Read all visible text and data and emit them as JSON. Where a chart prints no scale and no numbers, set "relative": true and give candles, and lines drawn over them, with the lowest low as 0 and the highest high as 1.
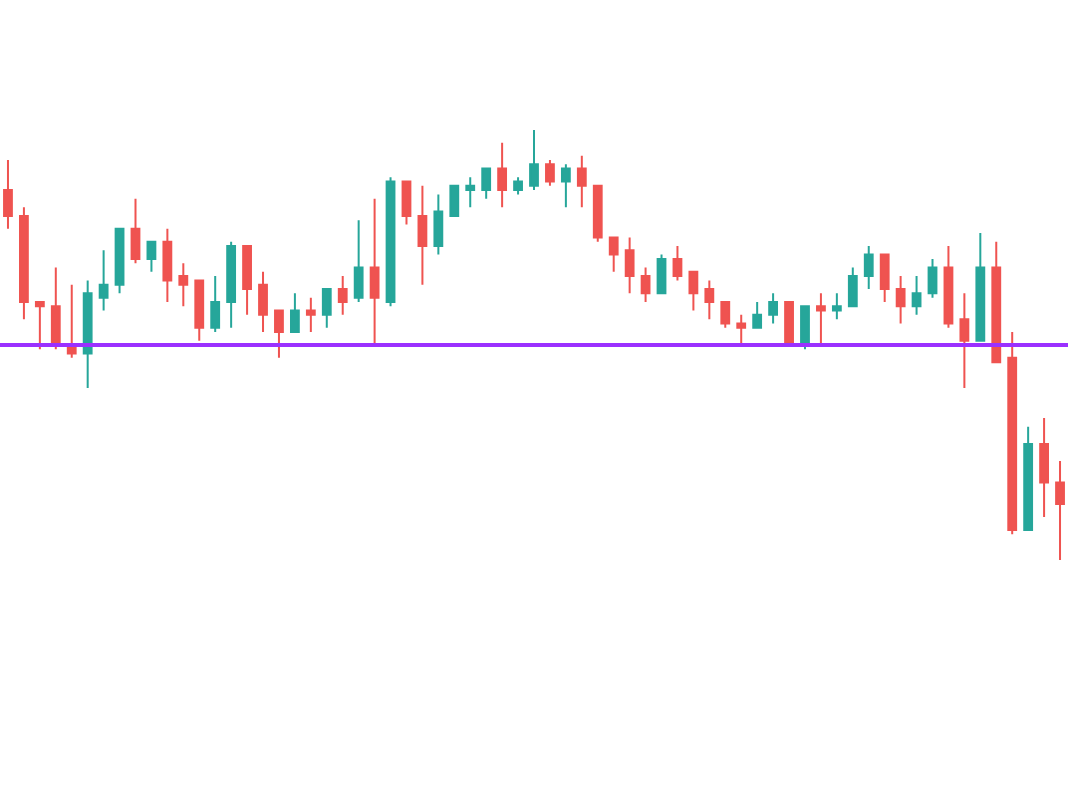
{
  "chart_data": {
    "type": "candlestick",
    "relative": true,
    "categories": [
      null,
      null,
      null,
      null,
      null,
      null,
      null,
      null,
      null,
      null,
      null,
      null,
      null,
      null,
      null,
      null,
      null,
      null,
      null,
      null,
      null,
      null,
      null,
      null,
      null,
      null,
      null,
      null,
      null,
      null,
      null,
      null,
      null,
      null,
      null,
      null,
      null,
      null,
      null,
      null,
      null,
      null,
      null,
      null,
      null,
      null,
      null,
      null,
      null,
      null,
      null,
      null,
      null,
      null,
      null,
      null,
      null,
      null,
      null,
      null,
      null,
      null,
      null,
      null,
      null,
      null,
      null
    ],
    "ohlc": [
      [
        0.86,
        0.93,
        0.77,
        0.8
      ],
      [
        0.8,
        0.82,
        0.56,
        0.6
      ],
      [
        0.6,
        0.6,
        0.49,
        0.59
      ],
      [
        0.59,
        0.68,
        0.49,
        0.5
      ],
      [
        0.5,
        0.64,
        0.47,
        0.48
      ],
      [
        0.48,
        0.65,
        0.4,
        0.62
      ],
      [
        0.61,
        0.72,
        0.58,
        0.64
      ],
      [
        0.64,
        0.77,
        0.62,
        0.77
      ],
      [
        0.77,
        0.84,
        0.69,
        0.7
      ],
      [
        0.7,
        0.74,
        0.67,
        0.74
      ],
      [
        0.74,
        0.77,
        0.6,
        0.65
      ],
      [
        0.66,
        0.69,
        0.59,
        0.64
      ],
      [
        0.65,
        0.65,
        0.51,
        0.54
      ],
      [
        0.54,
        0.66,
        0.53,
        0.6
      ],
      [
        0.6,
        0.74,
        0.54,
        0.73
      ],
      [
        0.73,
        0.73,
        0.57,
        0.63
      ],
      [
        0.64,
        0.67,
        0.53,
        0.57
      ],
      [
        0.58,
        0.58,
        0.47,
        0.53
      ],
      [
        0.53,
        0.62,
        0.53,
        0.58
      ],
      [
        0.58,
        0.61,
        0.53,
        0.57
      ],
      [
        0.57,
        0.63,
        0.54,
        0.63
      ],
      [
        0.63,
        0.66,
        0.57,
        0.6
      ],
      [
        0.61,
        0.79,
        0.6,
        0.68
      ],
      [
        0.68,
        0.84,
        0.5,
        0.61
      ],
      [
        0.6,
        0.89,
        0.59,
        0.88
      ],
      [
        0.88,
        0.88,
        0.78,
        0.8
      ],
      [
        0.8,
        0.87,
        0.64,
        0.73
      ],
      [
        0.73,
        0.85,
        0.71,
        0.81
      ],
      [
        0.8,
        0.87,
        0.8,
        0.87
      ],
      [
        0.86,
        0.89,
        0.82,
        0.87
      ],
      [
        0.86,
        0.91,
        0.84,
        0.91
      ],
      [
        0.91,
        0.97,
        0.82,
        0.86
      ],
      [
        0.86,
        0.89,
        0.85,
        0.88
      ],
      [
        0.87,
        1.0,
        0.86,
        0.92
      ],
      [
        0.92,
        0.93,
        0.87,
        0.88
      ],
      [
        0.88,
        0.92,
        0.82,
        0.91
      ],
      [
        0.91,
        0.94,
        0.82,
        0.87
      ],
      [
        0.87,
        0.87,
        0.74,
        0.75
      ],
      [
        0.75,
        0.75,
        0.67,
        0.71
      ],
      [
        0.72,
        0.75,
        0.62,
        0.66
      ],
      [
        0.66,
        0.68,
        0.6,
        0.62
      ],
      [
        0.62,
        0.71,
        0.62,
        0.7
      ],
      [
        0.7,
        0.73,
        0.65,
        0.66
      ],
      [
        0.67,
        0.67,
        0.58,
        0.62
      ],
      [
        0.63,
        0.65,
        0.56,
        0.6
      ],
      [
        0.6,
        0.6,
        0.54,
        0.55
      ],
      [
        0.55,
        0.57,
        0.5,
        0.54
      ],
      [
        0.54,
        0.6,
        0.54,
        0.57
      ],
      [
        0.57,
        0.62,
        0.55,
        0.6
      ],
      [
        0.6,
        0.6,
        0.5,
        0.5
      ],
      [
        0.5,
        0.59,
        0.49,
        0.59
      ],
      [
        0.59,
        0.62,
        0.5,
        0.58
      ],
      [
        0.58,
        0.62,
        0.56,
        0.59
      ],
      [
        0.59,
        0.68,
        0.59,
        0.66
      ],
      [
        0.66,
        0.73,
        0.63,
        0.71
      ],
      [
        0.71,
        0.71,
        0.6,
        0.63
      ],
      [
        0.63,
        0.66,
        0.55,
        0.59
      ],
      [
        0.59,
        0.66,
        0.57,
        0.62
      ],
      [
        0.62,
        0.7,
        0.61,
        0.68
      ],
      [
        0.68,
        0.73,
        0.54,
        0.55
      ],
      [
        0.56,
        0.62,
        0.4,
        0.51
      ],
      [
        0.51,
        0.76,
        0.51,
        0.68
      ],
      [
        0.68,
        0.74,
        0.46,
        0.46
      ],
      [
        0.47,
        0.53,
        0.06,
        0.07
      ],
      [
        0.07,
        0.31,
        0.07,
        0.27
      ],
      [
        0.27,
        0.33,
        0.1,
        0.18
      ],
      [
        0.18,
        0.23,
        0.0,
        0.13
      ]
    ],
    "colors": [
      "#ef5350",
      "#ef5350",
      "#ef5350",
      "#ef5350",
      "#ef5350",
      "#26a69a",
      "#26a69a",
      "#26a69a",
      "#ef5350",
      "#26a69a",
      "#ef5350",
      "#ef5350",
      "#ef5350",
      "#26a69a",
      "#26a69a",
      "#ef5350",
      "#ef5350",
      "#ef5350",
      "#26a69a",
      "#ef5350",
      "#26a69a",
      "#ef5350",
      "#26a69a",
      "#ef5350",
      "#26a69a",
      "#ef5350",
      "#ef5350",
      "#26a69a",
      "#26a69a",
      "#26a69a",
      "#26a69a",
      "#ef5350",
      "#26a69a",
      "#26a69a",
      "#ef5350",
      "#26a69a",
      "#ef5350",
      "#ef5350",
      "#ef5350",
      "#ef5350",
      "#ef5350",
      "#26a69a",
      "#ef5350",
      "#ef5350",
      "#ef5350",
      "#ef5350",
      "#ef5350",
      "#26a69a",
      "#26a69a",
      "#ef5350",
      "#26a69a",
      "#ef5350",
      "#26a69a",
      "#26a69a",
      "#26a69a",
      "#ef5350",
      "#ef5350",
      "#26a69a",
      "#26a69a",
      "#ef5350",
      "#ef5350",
      "#26a69a",
      "#ef5350",
      "#ef5350",
      "#26a69a",
      "#ef5350",
      "#ef5350"
    ],
    "ref_lines": [
      {
        "axis": "y",
        "value": 0.5,
        "color": "#9b30ff",
        "line_style": "solid"
      }
    ]
  }
}
